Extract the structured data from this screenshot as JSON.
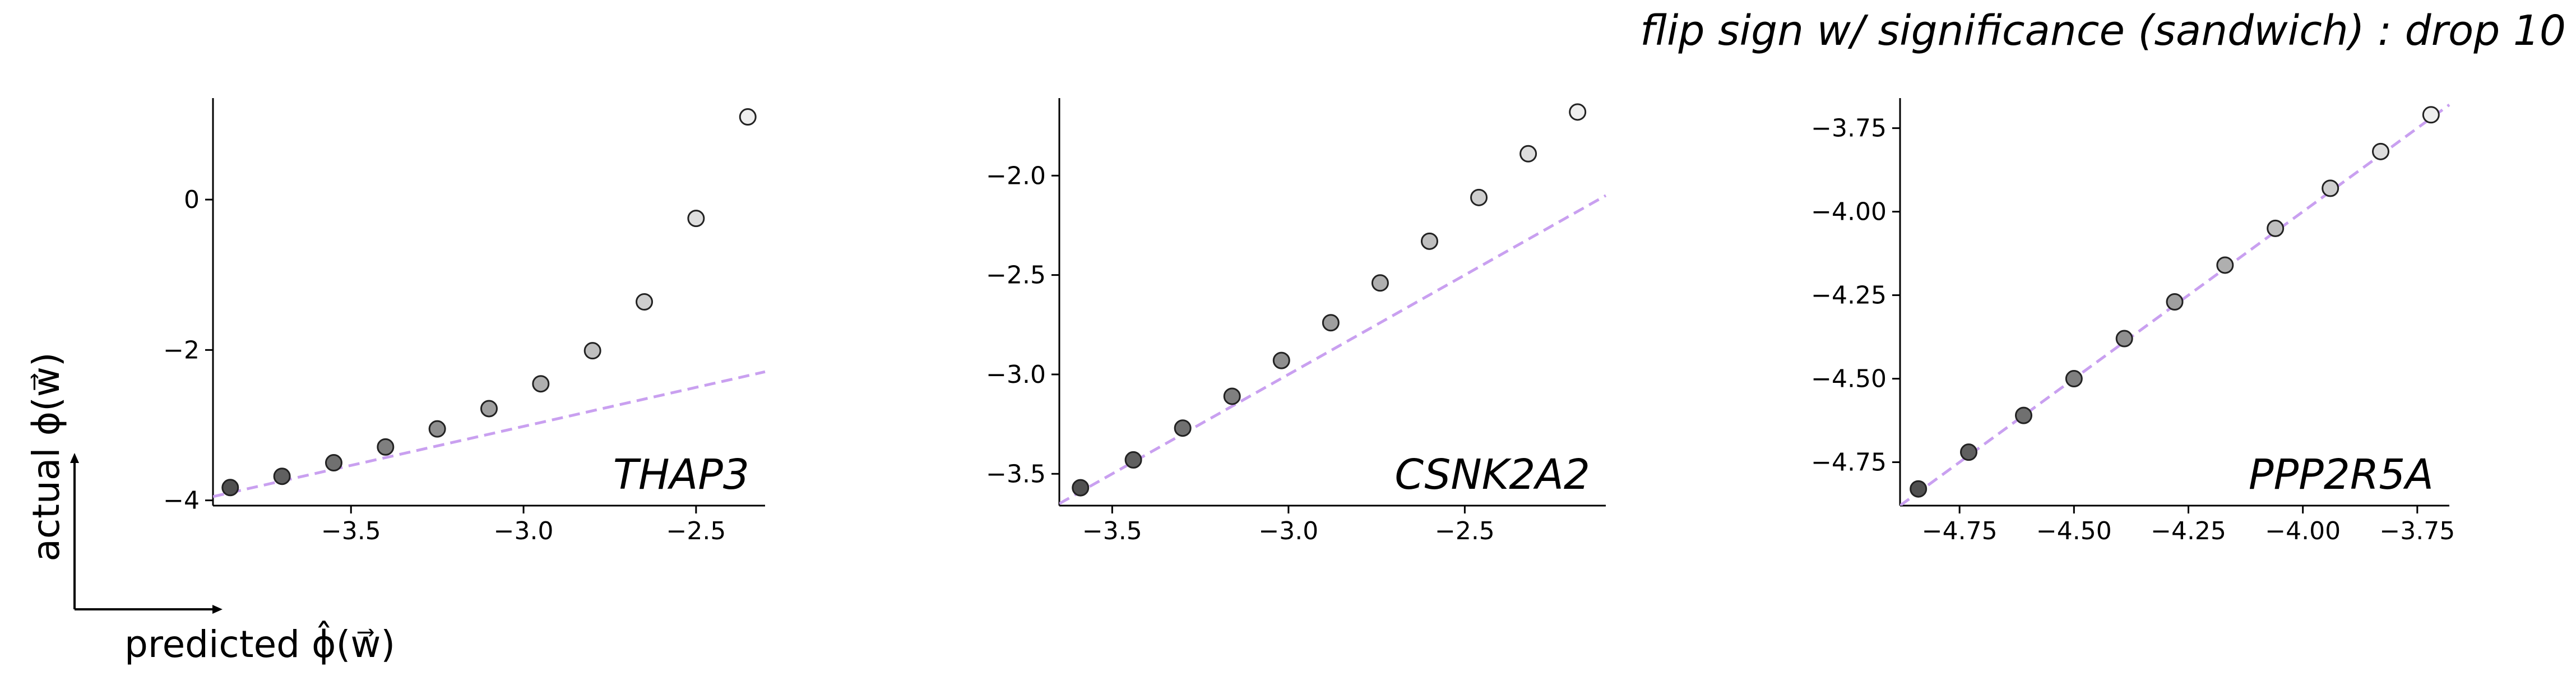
{
  "title": "flip sign w/ significance (sandwich) : drop 10",
  "corner_axes": {
    "xlabel": "predicted  ϕ̂(w⃗)",
    "ylabel": "actual  ϕ(w⃗)"
  },
  "colors": {
    "fit_line": "#c9a0f0",
    "point_edge": "#222222",
    "point_dark": "#505050",
    "point_light": "#eeeeee"
  },
  "chart_data": [
    {
      "type": "scatter",
      "panel_label": "THAP3",
      "x": [
        -3.85,
        -3.7,
        -3.55,
        -3.4,
        -3.25,
        -3.1,
        -2.95,
        -2.8,
        -2.65,
        -2.5,
        -2.35
      ],
      "y": [
        -3.83,
        -3.68,
        -3.5,
        -3.29,
        -3.05,
        -2.78,
        -2.45,
        -2.01,
        -1.36,
        -0.25,
        1.1
      ],
      "fit_line": {
        "x": [
          -3.9,
          -2.3
        ],
        "y": [
          -3.95,
          -2.29
        ]
      },
      "xlim": [
        -3.9,
        -2.3
      ],
      "ylim": [
        -4.07,
        1.35
      ],
      "xticks": [
        -3.5,
        -3.0,
        -2.5
      ],
      "yticks": [
        -4,
        -2,
        0
      ],
      "xticklabels": [
        "−3.5",
        "−3.0",
        "−2.5"
      ],
      "yticklabels": [
        "−4",
        "−2",
        "0"
      ]
    },
    {
      "type": "scatter",
      "panel_label": "CSNK2A2",
      "x": [
        -3.59,
        -3.44,
        -3.3,
        -3.16,
        -3.02,
        -2.88,
        -2.74,
        -2.6,
        -2.46,
        -2.32,
        -2.18
      ],
      "y": [
        -3.57,
        -3.43,
        -3.27,
        -3.11,
        -2.93,
        -2.74,
        -2.54,
        -2.33,
        -2.11,
        -1.89,
        -1.68
      ],
      "fit_line": {
        "x": [
          -3.65,
          -2.1
        ],
        "y": [
          -3.65,
          -2.1
        ]
      },
      "xlim": [
        -3.65,
        -2.1
      ],
      "ylim": [
        -3.66,
        -1.61
      ],
      "xticks": [
        -3.5,
        -3.0,
        -2.5
      ],
      "yticks": [
        -3.5,
        -3.0,
        -2.5,
        -2.0
      ],
      "xticklabels": [
        "−3.5",
        "−3.0",
        "−2.5"
      ],
      "yticklabels": [
        "−3.5",
        "−3.0",
        "−2.5",
        "−2.0"
      ]
    },
    {
      "type": "scatter",
      "panel_label": "PPP2R5A",
      "x": [
        -4.84,
        -4.73,
        -4.61,
        -4.5,
        -4.39,
        -4.28,
        -4.17,
        -4.06,
        -3.94,
        -3.83,
        -3.72
      ],
      "y": [
        -4.83,
        -4.72,
        -4.61,
        -4.5,
        -4.38,
        -4.27,
        -4.16,
        -4.05,
        -3.93,
        -3.82,
        -3.71
      ],
      "fit_line": {
        "x": [
          -4.88,
          -3.68
        ],
        "y": [
          -4.88,
          -3.68
        ]
      },
      "xlim": [
        -4.88,
        -3.68
      ],
      "ylim": [
        -4.88,
        -3.66
      ],
      "xticks": [
        -4.75,
        -4.5,
        -4.25,
        -4.0,
        -3.75
      ],
      "yticks": [
        -4.75,
        -4.5,
        -4.25,
        -4.0,
        -3.75
      ],
      "xticklabels": [
        "−4.75",
        "−4.50",
        "−4.25",
        "−4.00",
        "−3.75"
      ],
      "yticklabels": [
        "−4.75",
        "−4.50",
        "−4.25",
        "−4.00",
        "−3.75"
      ]
    }
  ]
}
